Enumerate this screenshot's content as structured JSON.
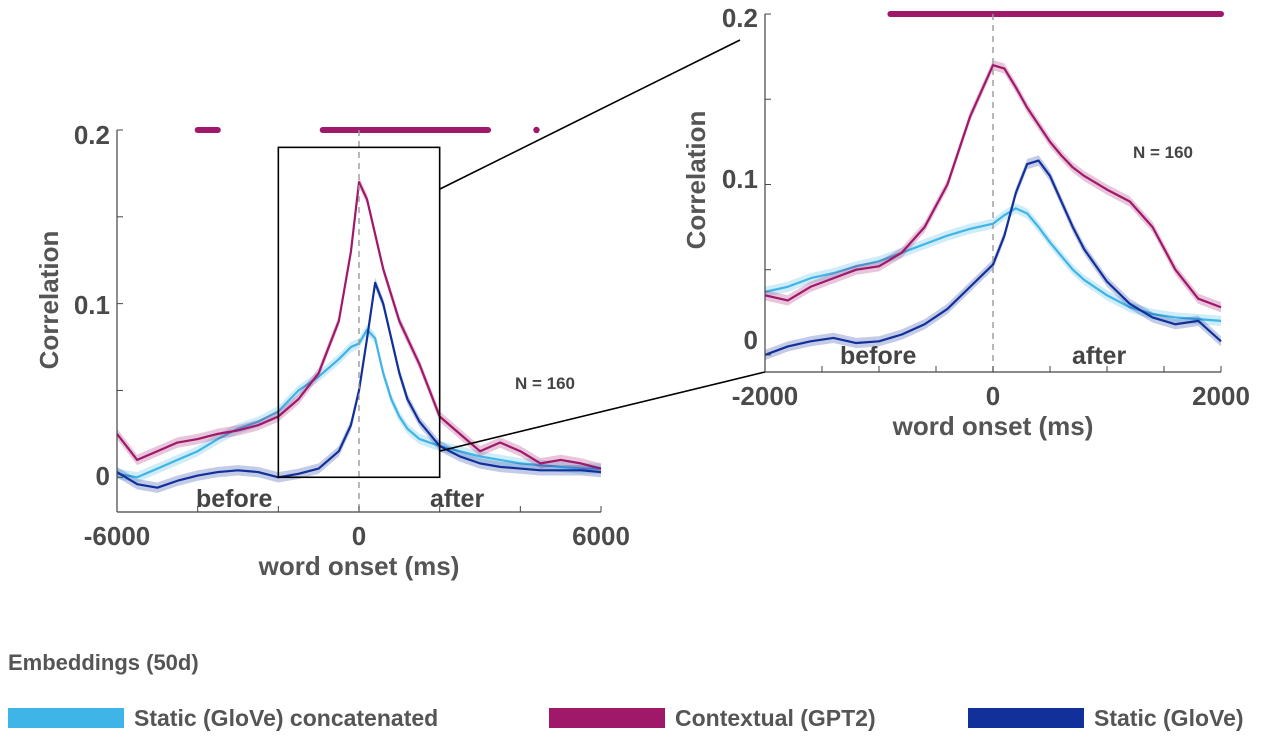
{
  "colors": {
    "static_concat": "#3fb4e6",
    "contextual": "#a0186a",
    "static": "#11309a",
    "axis": "#444444",
    "dashed": "#999999",
    "box": "#000000"
  },
  "legend": {
    "title": "Embeddings (50d)",
    "items": [
      {
        "label": "Static (GloVe) concatenated",
        "color": "#3fb4e6"
      },
      {
        "label": "Contextual (GPT2)",
        "color": "#a0186a"
      },
      {
        "label": "Static (GloVe)",
        "color": "#11309a"
      }
    ]
  },
  "chart_data": [
    {
      "type": "line",
      "panel": "main",
      "xlabel": "word onset (ms)",
      "ylabel": "Correlation",
      "xlim": [
        -6000,
        6000
      ],
      "ylim": [
        -0.02,
        0.2
      ],
      "xticks": [
        "-6000",
        "0",
        "6000"
      ],
      "yticks": [
        "0",
        "0.1",
        "0.2"
      ],
      "annotations": {
        "n_label": "N = 160",
        "before": "before",
        "after": "after"
      },
      "zoom_box": {
        "x": [
          -2000,
          2000
        ],
        "y": [
          0,
          0.19
        ]
      },
      "significance_marks": [
        {
          "from": -4000,
          "to": -3500
        },
        {
          "from": -900,
          "to": 3200
        },
        {
          "from": 4400,
          "to": 4400
        }
      ],
      "series": [
        {
          "name": "Static (GloVe) concatenated",
          "x": [
            -6000,
            -5500,
            -5000,
            -4500,
            -4000,
            -3500,
            -3000,
            -2500,
            -2000,
            -1500,
            -1000,
            -500,
            -200,
            0,
            200,
            400,
            600,
            800,
            1000,
            1200,
            1500,
            2000,
            2500,
            3000,
            3500,
            4000,
            4500,
            5000,
            5500,
            6000
          ],
          "y": [
            0.002,
            0.0,
            0.005,
            0.01,
            0.015,
            0.022,
            0.028,
            0.032,
            0.038,
            0.05,
            0.058,
            0.068,
            0.075,
            0.077,
            0.085,
            0.08,
            0.06,
            0.045,
            0.035,
            0.028,
            0.022,
            0.018,
            0.015,
            0.012,
            0.01,
            0.008,
            0.007,
            0.006,
            0.005,
            0.005
          ]
        },
        {
          "name": "Contextual (GPT2)",
          "x": [
            -6000,
            -5500,
            -5000,
            -4500,
            -4000,
            -3500,
            -3000,
            -2500,
            -2000,
            -1500,
            -1000,
            -500,
            -200,
            0,
            200,
            400,
            600,
            800,
            1000,
            1200,
            1500,
            2000,
            2500,
            3000,
            3500,
            4000,
            4500,
            5000,
            5500,
            6000
          ],
          "y": [
            0.025,
            0.01,
            0.015,
            0.02,
            0.022,
            0.025,
            0.027,
            0.03,
            0.035,
            0.045,
            0.06,
            0.09,
            0.13,
            0.17,
            0.16,
            0.14,
            0.12,
            0.105,
            0.09,
            0.08,
            0.065,
            0.035,
            0.025,
            0.015,
            0.02,
            0.015,
            0.008,
            0.01,
            0.008,
            0.005
          ]
        },
        {
          "name": "Static (GloVe)",
          "x": [
            -6000,
            -5500,
            -5000,
            -4500,
            -4000,
            -3500,
            -3000,
            -2500,
            -2000,
            -1500,
            -1000,
            -500,
            -200,
            0,
            200,
            400,
            600,
            800,
            1000,
            1200,
            1500,
            2000,
            2500,
            3000,
            3500,
            4000,
            4500,
            5000,
            5500,
            6000
          ],
          "y": [
            0.003,
            -0.004,
            -0.006,
            -0.002,
            0.001,
            0.003,
            0.004,
            0.003,
            0.0,
            0.002,
            0.005,
            0.015,
            0.03,
            0.05,
            0.08,
            0.112,
            0.1,
            0.08,
            0.06,
            0.045,
            0.032,
            0.018,
            0.012,
            0.008,
            0.006,
            0.005,
            0.004,
            0.004,
            0.004,
            0.003
          ]
        }
      ]
    },
    {
      "type": "line",
      "panel": "zoom",
      "xlabel": "word onset (ms)",
      "ylabel": "Correlation",
      "xlim": [
        -2000,
        2000
      ],
      "ylim": [
        -0.01,
        0.2
      ],
      "xticks": [
        "-2000",
        "0",
        "2000"
      ],
      "yticks": [
        "0",
        "0.1",
        "0.2"
      ],
      "annotations": {
        "n_label": "N = 160",
        "before": "before",
        "after": "after"
      },
      "significance_marks": [
        {
          "from": -900,
          "to": 2000
        }
      ],
      "series": [
        {
          "name": "Static (GloVe) concatenated",
          "x": [
            -2000,
            -1800,
            -1600,
            -1400,
            -1200,
            -1000,
            -800,
            -600,
            -400,
            -200,
            0,
            100,
            200,
            300,
            400,
            500,
            600,
            700,
            800,
            1000,
            1200,
            1400,
            1600,
            1800,
            2000
          ],
          "y": [
            0.037,
            0.04,
            0.045,
            0.048,
            0.052,
            0.055,
            0.06,
            0.065,
            0.07,
            0.074,
            0.077,
            0.082,
            0.086,
            0.083,
            0.075,
            0.066,
            0.058,
            0.05,
            0.044,
            0.035,
            0.028,
            0.024,
            0.022,
            0.021,
            0.02
          ]
        },
        {
          "name": "Contextual (GPT2)",
          "x": [
            -2000,
            -1800,
            -1600,
            -1400,
            -1200,
            -1000,
            -800,
            -600,
            -400,
            -200,
            0,
            100,
            200,
            300,
            400,
            500,
            600,
            700,
            800,
            1000,
            1200,
            1400,
            1600,
            1800,
            2000
          ],
          "y": [
            0.035,
            0.032,
            0.04,
            0.045,
            0.05,
            0.052,
            0.06,
            0.075,
            0.1,
            0.14,
            0.17,
            0.168,
            0.157,
            0.145,
            0.135,
            0.125,
            0.117,
            0.11,
            0.105,
            0.097,
            0.09,
            0.075,
            0.05,
            0.033,
            0.028
          ]
        },
        {
          "name": "Static (GloVe)",
          "x": [
            -2000,
            -1800,
            -1600,
            -1400,
            -1200,
            -1000,
            -800,
            -600,
            -400,
            -200,
            0,
            100,
            200,
            300,
            400,
            500,
            600,
            700,
            800,
            1000,
            1200,
            1400,
            1600,
            1800,
            2000
          ],
          "y": [
            0.0,
            0.005,
            0.008,
            0.01,
            0.007,
            0.008,
            0.012,
            0.018,
            0.027,
            0.04,
            0.053,
            0.07,
            0.095,
            0.112,
            0.114,
            0.105,
            0.09,
            0.075,
            0.062,
            0.043,
            0.03,
            0.022,
            0.018,
            0.02,
            0.008
          ]
        }
      ]
    }
  ]
}
